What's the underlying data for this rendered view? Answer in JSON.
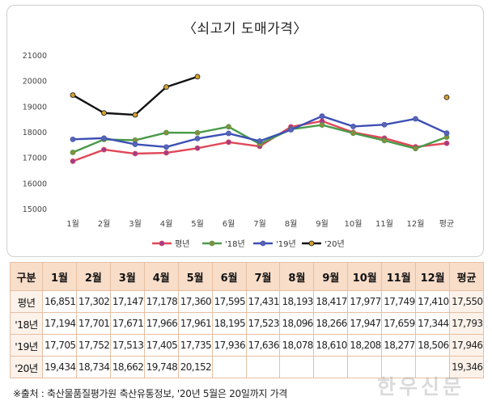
{
  "chart_data": {
    "type": "line",
    "title": "〈쇠고기 도매가격〉",
    "categories": [
      "1월",
      "2월",
      "3월",
      "4월",
      "5월",
      "6월",
      "7월",
      "8월",
      "9월",
      "10월",
      "11월",
      "12월",
      "평균"
    ],
    "ylim": [
      15000,
      21000
    ],
    "yticks": [
      15000,
      16000,
      17000,
      18000,
      19000,
      20000,
      21000
    ],
    "ytick_labels": [
      "15000",
      "16000",
      "17000",
      "18000",
      "19000",
      "20000",
      "21000"
    ],
    "legend_position": "bottom",
    "grid": false,
    "series": [
      {
        "name": "평년",
        "color": "#e04858",
        "marker": "#a03c8c",
        "values": [
          16851,
          17302,
          17147,
          17178,
          17360,
          17595,
          17431,
          18193,
          18417,
          17977,
          17749,
          17410,
          17550
        ]
      },
      {
        "name": "'18년",
        "color": "#4a9a4a",
        "marker": "#8c8c3c",
        "values": [
          17194,
          17701,
          17671,
          17966,
          17961,
          18195,
          17523,
          18096,
          18266,
          17947,
          17659,
          17344,
          17793
        ]
      },
      {
        "name": "'19년",
        "color": "#3c50b4",
        "marker": "#5a64b4",
        "values": [
          17705,
          17752,
          17513,
          17405,
          17735,
          17936,
          17636,
          18078,
          18610,
          18208,
          18277,
          18506,
          17946
        ]
      },
      {
        "name": "'20년",
        "color": "#111111",
        "marker": "#d4a030",
        "values": [
          19434,
          18734,
          18662,
          19748,
          20152,
          null,
          null,
          null,
          null,
          null,
          null,
          null,
          19346
        ]
      }
    ]
  },
  "table": {
    "headers": [
      "구분",
      "1월",
      "2월",
      "3월",
      "4월",
      "5월",
      "6월",
      "7월",
      "8월",
      "9월",
      "10월",
      "11월",
      "12월",
      "평균"
    ],
    "rows": [
      {
        "label": "평년",
        "cells": [
          "16,851",
          "17,302",
          "17,147",
          "17,178",
          "17,360",
          "17,595",
          "17,431",
          "18,193",
          "18,417",
          "17,977",
          "17,749",
          "17,410",
          "17,550"
        ]
      },
      {
        "label": "'18년",
        "cells": [
          "17,194",
          "17,701",
          "17,671",
          "17,966",
          "17,961",
          "18,195",
          "17,523",
          "18,096",
          "18,266",
          "17,947",
          "17,659",
          "17,344",
          "17,793"
        ]
      },
      {
        "label": "'19년",
        "cells": [
          "17,705",
          "17,752",
          "17,513",
          "17,405",
          "17,735",
          "17,936",
          "17,636",
          "18,078",
          "18,610",
          "18,208",
          "18,277",
          "18,506",
          "17,946"
        ]
      },
      {
        "label": "'20년",
        "cells": [
          "19,434",
          "18,734",
          "18,662",
          "19,748",
          "20,152",
          "",
          "",
          "",
          "",
          "",
          "",
          "",
          "19,346"
        ]
      }
    ]
  },
  "source_note": "※출처 : 축산물품질평가원 축산유통정보, '20년 5월은 20일까지 가격",
  "watermark": "한우신문"
}
